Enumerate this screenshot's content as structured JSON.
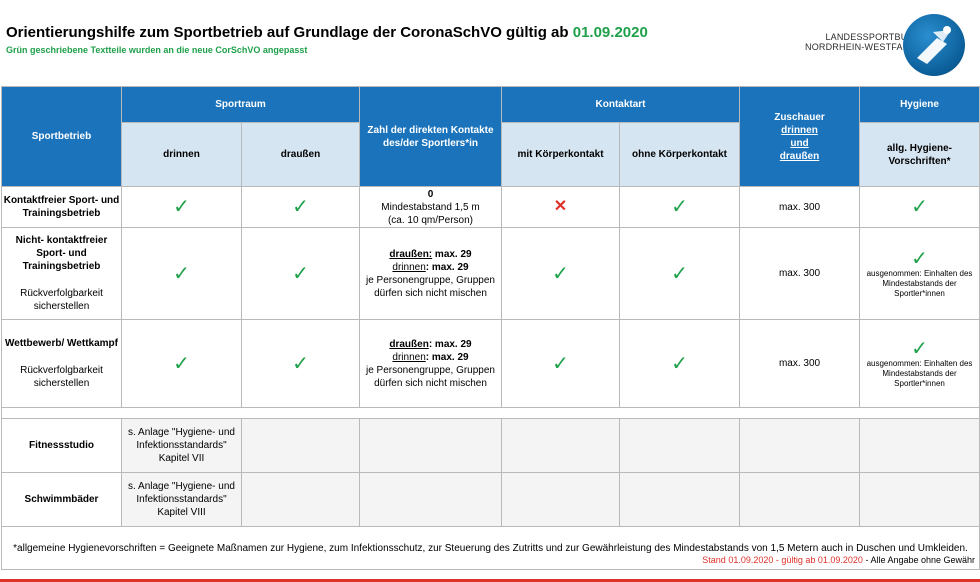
{
  "title": {
    "main": "Orientierungshilfe zum Sportbetrieb auf Grundlage der CoronaSchVO gültig ab",
    "date": "01.09.2020",
    "subtitle": "Grün geschriebene Textteile wurden an die neue CorSchVO angepasst"
  },
  "logo": {
    "line1": "LANDESSPORTBUND",
    "line2": "NORDRHEIN-WESTFALEN"
  },
  "headers": {
    "sportbetrieb": "Sportbetrieb",
    "sportraum": "Sportraum",
    "drinnen": "drinnen",
    "draussen": "draußen",
    "kontakte": "Zahl der direkten Kontakte des/der Sportlers*in",
    "kontaktart": "Kontaktart",
    "mit": "mit Körperkontakt",
    "ohne": "ohne Körperkontakt",
    "zuschauer_1": "Zuschauer",
    "zuschauer_2": "drinnen",
    "zuschauer_3": "und",
    "zuschauer_4": "draußen",
    "hygiene": "Hygiene",
    "hygiene_sub": "allg. Hygiene-Vorschriften*"
  },
  "rows": [
    {
      "name": "Kontaktfreier Sport- und Trainingsbetrieb",
      "contacts_line1": "0",
      "contacts_line2": "Mindestabstand 1,5 m",
      "contacts_line3": "(ca. 10 qm/Person)",
      "zuschauer": "max. 300"
    },
    {
      "name": "Nicht- kontaktfreier Sport- und Trainingsbetrieb",
      "note": "Rückverfolgbarkeit sicherstellen",
      "out_label": "draußen:",
      "out_value": "max. 29",
      "in_label": "drinnen",
      "in_value": ": max. 29",
      "group_text": "je Personengruppe, Gruppen dürfen sich nicht mischen",
      "zuschauer": "max. 300",
      "hygiene_note": "ausgenommen: Einhalten des Mindestabstands der Sportler*innen"
    },
    {
      "name": "Wettbewerb/ Wettkampf",
      "note": "Rückverfolgbarkeit sicherstellen",
      "out_label": "draußen",
      "out_value": ":  max. 29",
      "in_label": "drinnen",
      "in_value": ": max. 29",
      "group_text": "je Personengruppe, Gruppen dürfen sich nicht mischen",
      "zuschauer": "max. 300",
      "hygiene_note": "ausgenommen: Einhalten des Mindestabstands der Sportler*innen"
    }
  ],
  "extra_rows": [
    {
      "name": "Fitnessstudio",
      "text": "s. Anlage \"Hygiene- und Infektionsstandards\" Kapitel VII"
    },
    {
      "name": "Schwimmbäder",
      "text": "s. Anlage \"Hygiene- und Infektionsstandards\" Kapitel VIII"
    }
  ],
  "symbols": {
    "tick": "✓",
    "cross": "✕"
  },
  "footnote": "*allgemeine Hygienevorschriften = Geeignete Maßnamen zur Hygiene, zum Infektionsschutz, zur Steuerung des Zutritts und zur Gewährleistung des Mindestabstands von 1,5 Metern auch in Duschen und Umkleiden.",
  "stand": {
    "red": "Stand 01.09.2020 - gültig ab 01.09.2020",
    "black": " - Alle Angabe ohne Gewähr"
  },
  "colors": {
    "header_blue": "#1a73bb",
    "subheader_blue": "#d6e5f2",
    "green": "#1fa04a",
    "red": "#e0312b"
  }
}
